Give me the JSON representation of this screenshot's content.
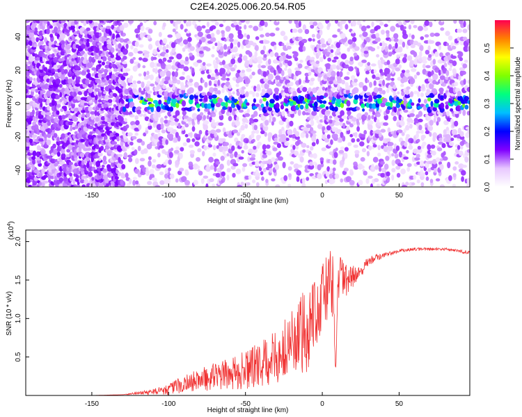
{
  "title": "C2E4.2025.006.20.54.R05",
  "chart_data": [
    {
      "type": "heatmap",
      "title": "C2E4.2025.006.20.54.R05",
      "xlabel": "Height of straight line (km)",
      "ylabel": "Frequency (Hz)",
      "xlim": [
        -193,
        96
      ],
      "ylim": [
        -50,
        50
      ],
      "xticks": [
        -150,
        -100,
        -50,
        0,
        50
      ],
      "yticks": [
        -40,
        -20,
        0,
        20,
        40
      ],
      "colorbar": {
        "label": "Normalized spectral amplitude",
        "range": [
          0.0,
          0.6
        ],
        "ticks": [
          0.0,
          0.1,
          0.2,
          0.3,
          0.4,
          0.5
        ],
        "tick_labels": [
          "0.0",
          "0.1",
          "0.2",
          "0.3",
          "0.4",
          "0.5"
        ],
        "colors": [
          "#ffffff",
          "#e8c8ff",
          "#8000ff",
          "#0000ff",
          "#00bfff",
          "#00ff80",
          "#80ff00",
          "#ffff00",
          "#ff8000",
          "#ff0050"
        ]
      },
      "description_values": {
        "noise_region_x": [
          -193,
          -130
        ],
        "carrier_frequency_hz": 0,
        "carrier_peak_amplitude_max": 0.35
      }
    },
    {
      "type": "line",
      "xlabel": "Height of straight line (km)",
      "ylabel": "SNR (10 * v/v)",
      "y_multiplier_label": "(x10",
      "y_multiplier_exp": "4",
      "y_multiplier_close": ")",
      "xlim": [
        -193,
        96
      ],
      "ylim": [
        0,
        2.15
      ],
      "xticks": [
        -150,
        -100,
        -50,
        0,
        50
      ],
      "yticks": [
        0.5,
        1.0,
        1.5,
        2.0
      ],
      "ytick_labels": [
        "0.5",
        "1.0",
        "1.5",
        "2.0"
      ],
      "line_color": "#f03030",
      "x": [
        -193,
        -150,
        -130,
        -120,
        -110,
        -100,
        -90,
        -80,
        -70,
        -60,
        -50,
        -40,
        -30,
        -25,
        -20,
        -15,
        -10,
        -7,
        -5,
        -3,
        0,
        2,
        5,
        7,
        9,
        10,
        12,
        15,
        20,
        25,
        30,
        40,
        50,
        60,
        70,
        80,
        90,
        95
      ],
      "values": [
        0.0,
        0.0,
        0.01,
        0.03,
        0.05,
        0.08,
        0.15,
        0.2,
        0.25,
        0.28,
        0.33,
        0.4,
        0.5,
        0.55,
        0.7,
        0.7,
        0.85,
        1.0,
        1.2,
        1.1,
        1.25,
        1.35,
        1.5,
        1.4,
        0.3,
        1.5,
        1.55,
        1.45,
        1.55,
        1.6,
        1.75,
        1.82,
        1.88,
        1.9,
        1.9,
        1.9,
        1.88,
        1.85
      ],
      "noise_amplitude": [
        0,
        0,
        0,
        0.02,
        0.04,
        0.07,
        0.12,
        0.15,
        0.18,
        0.2,
        0.25,
        0.3,
        0.35,
        0.4,
        0.5,
        0.55,
        0.6,
        0.6,
        0.5,
        0.5,
        0.45,
        0.45,
        0.4,
        0.4,
        0.2,
        0.3,
        0.3,
        0.25,
        0.15,
        0.08,
        0.06,
        0.03,
        0.02,
        0.02,
        0.02,
        0.02,
        0.02,
        0.03
      ]
    }
  ]
}
